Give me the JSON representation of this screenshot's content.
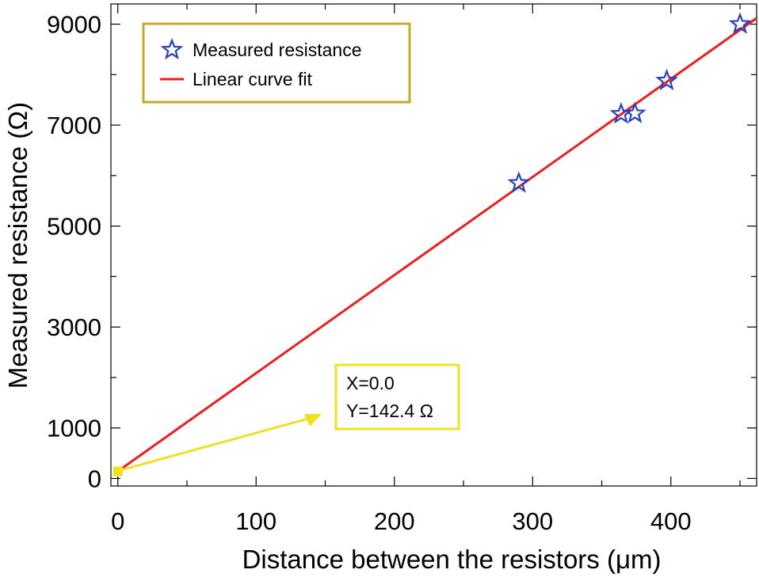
{
  "chart_data": {
    "type": "scatter",
    "title": "",
    "xlabel": "Distance between the resistors (μm)",
    "ylabel": "Measured resistance (Ω)",
    "xlim": [
      -5,
      462
    ],
    "ylim": [
      -150,
      9400
    ],
    "x_ticks": [
      {
        "value": 0,
        "label": "0"
      },
      {
        "value": 100,
        "label": "100"
      },
      {
        "value": 200,
        "label": "200"
      },
      {
        "value": 300,
        "label": "300"
      },
      {
        "value": 400,
        "label": "400"
      }
    ],
    "x_minor_ticks": [
      50,
      150,
      250,
      350,
      450
    ],
    "y_ticks": [
      {
        "value": 0,
        "label": "0"
      },
      {
        "value": 1000,
        "label": "1000"
      },
      {
        "value": 3000,
        "label": "3000"
      },
      {
        "value": 5000,
        "label": "5000"
      },
      {
        "value": 7000,
        "label": "7000"
      },
      {
        "value": 9000,
        "label": "9000"
      }
    ],
    "y_minor_ticks": [
      2000,
      4000,
      6000,
      8000
    ],
    "grid": false,
    "series": [
      {
        "name": "Measured resistance",
        "kind": "scatter",
        "marker": "star-open",
        "color": "#2a3fbf",
        "x": [
          290,
          364,
          374,
          397,
          450
        ],
        "y": [
          5850,
          7220,
          7230,
          7880,
          9000
        ]
      },
      {
        "name": "Linear curve fit",
        "kind": "line",
        "color": "#e82020",
        "x": [
          0,
          462
        ],
        "y": [
          142.4,
          9120
        ]
      }
    ],
    "legend": {
      "position": "top-left",
      "border_color": "#c8a82a",
      "entries": [
        {
          "label": "Measured resistance",
          "marker": "star-open",
          "color": "#2a3fbf"
        },
        {
          "label": "Linear curve fit",
          "marker": "line",
          "color": "#e82020"
        }
      ]
    },
    "annotation": {
      "lines": [
        "X=0.0",
        "Y=142.4 Ω"
      ],
      "point": {
        "x": 0,
        "y": 142.4
      },
      "color": "#f0e020"
    }
  }
}
